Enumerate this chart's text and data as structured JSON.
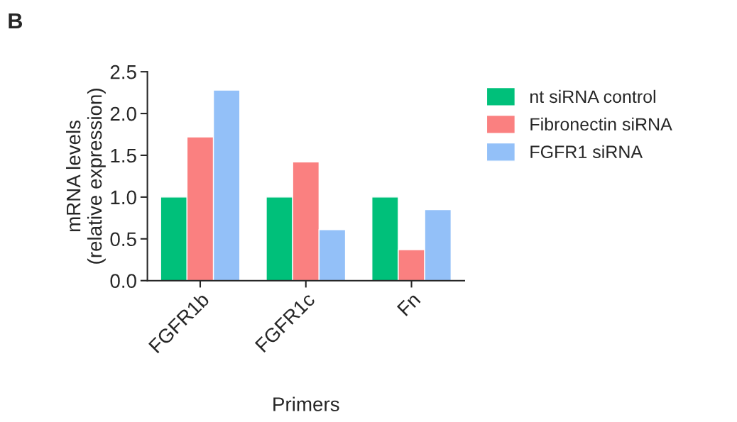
{
  "chart_data": {
    "type": "bar",
    "ylabel": "mRNA levels\n(relative expression)",
    "xlabel": "Primers",
    "annotations": [
      "B"
    ],
    "categories": [
      "FGFR1b",
      "FGFR1c",
      "Fn"
    ],
    "series": [
      {
        "name": "nt siRNA control",
        "color": "#00c07a",
        "values": [
          1.0,
          1.0,
          1.0
        ]
      },
      {
        "name": "Fibronectin siRNA",
        "color": "#fa8080",
        "values": [
          1.72,
          1.42,
          0.37
        ]
      },
      {
        "name": "FGFR1 siRNA",
        "color": "#93c0f8",
        "values": [
          2.28,
          0.61,
          0.85
        ]
      }
    ],
    "ylim": [
      0,
      2.5
    ],
    "yticks": [
      {
        "value": 0,
        "label": "0.0"
      },
      {
        "value": 0.5,
        "label": "0.5"
      },
      {
        "value": 1,
        "label": "1.0"
      },
      {
        "value": 1.5,
        "label": "1.5"
      },
      {
        "value": 2,
        "label": "2.0"
      },
      {
        "value": 2.5,
        "label": "2.5"
      }
    ],
    "legend": "right",
    "grid": false
  }
}
